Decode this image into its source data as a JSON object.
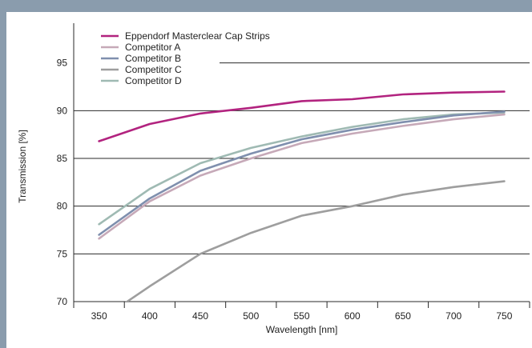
{
  "chart_data": {
    "type": "line",
    "xlabel": "Wavelength [nm]",
    "ylabel": "Transmission [%]",
    "x": [
      350,
      400,
      450,
      500,
      550,
      600,
      650,
      700,
      750
    ],
    "xlim": [
      325,
      775
    ],
    "ylim": [
      70,
      100
    ],
    "y_ticks": [
      70,
      75,
      80,
      85,
      90,
      95
    ],
    "grid": "horizontal",
    "legend_position": "top-left",
    "series": [
      {
        "name": "Eppendorf Masterclear Cap Strips",
        "color": "#b2237f",
        "values": [
          86.8,
          88.6,
          89.7,
          90.3,
          91.0,
          91.2,
          91.7,
          91.9,
          92.0
        ]
      },
      {
        "name": "Competitor A",
        "color": "#c6a9b8",
        "values": [
          76.6,
          80.5,
          83.2,
          85.0,
          86.6,
          87.6,
          88.4,
          89.1,
          89.6
        ]
      },
      {
        "name": "Competitor B",
        "color": "#7f8fae",
        "values": [
          77.0,
          80.8,
          83.7,
          85.5,
          87.0,
          88.0,
          88.8,
          89.5,
          89.9
        ]
      },
      {
        "name": "Competitor C",
        "color": "#9e9e9e",
        "values": [
          68.0,
          71.6,
          75.0,
          77.2,
          79.0,
          80.0,
          81.2,
          82.0,
          82.6
        ]
      },
      {
        "name": "Competitor D",
        "color": "#9fbab3",
        "values": [
          78.1,
          81.8,
          84.5,
          86.1,
          87.3,
          88.3,
          89.1,
          89.6,
          89.8
        ]
      }
    ]
  }
}
